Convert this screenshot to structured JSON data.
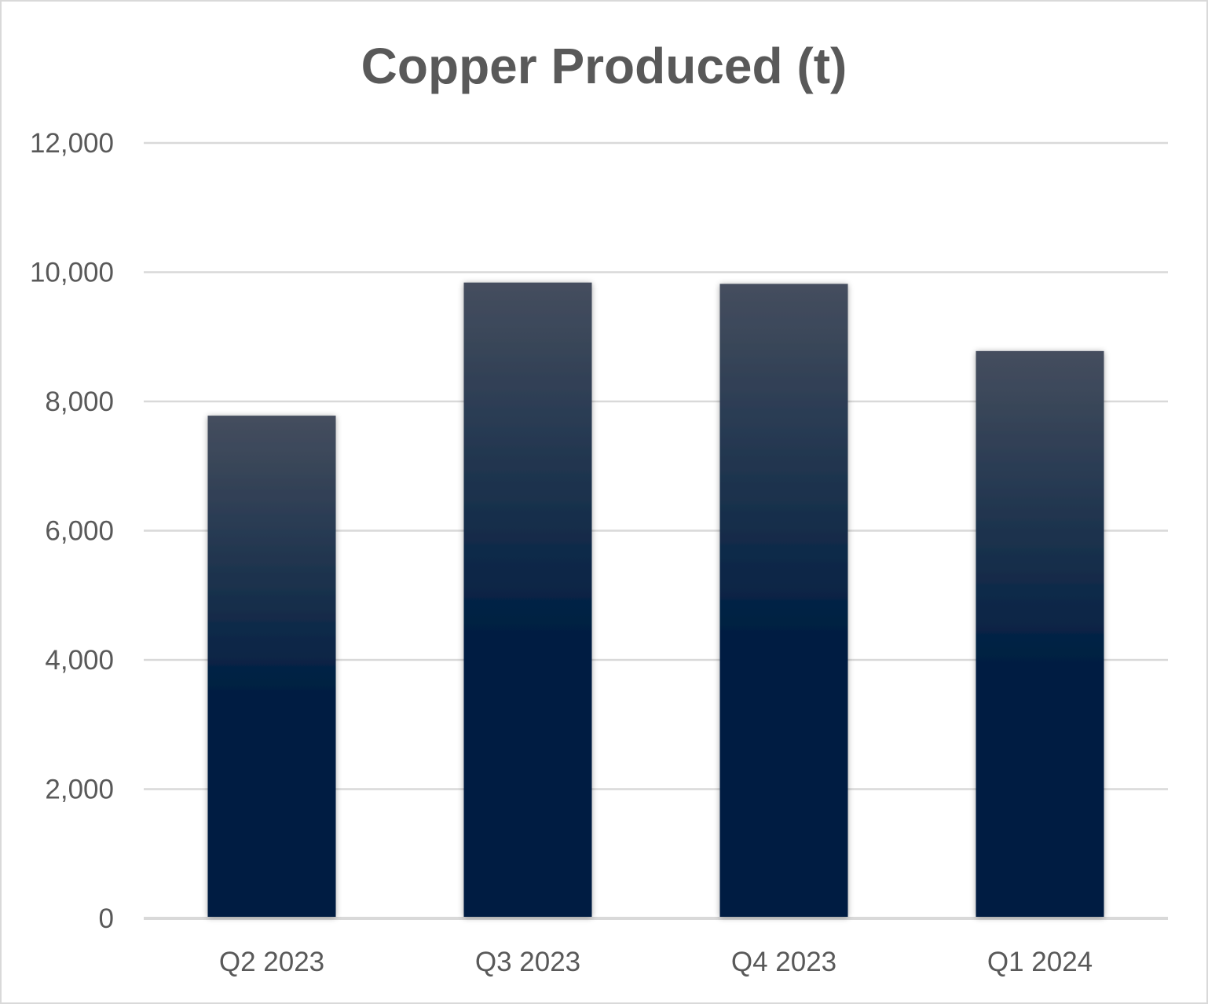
{
  "chart_data": {
    "type": "bar",
    "title": "Copper Produced (t)",
    "xlabel": "",
    "ylabel": "",
    "categories": [
      "Q2 2023",
      "Q3 2023",
      "Q4 2023",
      "Q1 2024"
    ],
    "values": [
      7780,
      9840,
      9820,
      8780
    ],
    "ylim": [
      0,
      12000
    ],
    "yticks": [
      0,
      2000,
      4000,
      6000,
      8000,
      10000,
      12000
    ],
    "ytick_labels": [
      "0",
      "2,000",
      "4,000",
      "6,000",
      "8,000",
      "10,000",
      "12,000"
    ],
    "grid": true,
    "legend": "none",
    "colors": {
      "bar_top": "#454e5e",
      "bar_bottom": "#001f42",
      "grid": "#d9d9d9",
      "text": "#595959"
    }
  }
}
